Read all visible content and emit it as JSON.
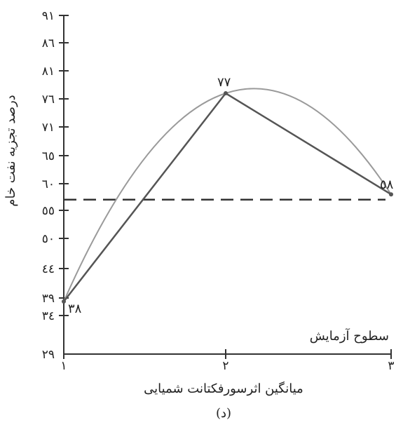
{
  "chart_data": {
    "type": "line",
    "ylabel": "درصد تجزیه نفت خام",
    "xlabel": "میانگین اثرسورفکتانت شمیایی",
    "x_axis_name": "سطوح آزمایش",
    "caption": "(د)",
    "x": [
      1,
      2,
      3
    ],
    "x_tick_labels": [
      "١",
      "٢",
      "٣"
    ],
    "ylim": [
      29,
      91
    ],
    "y_ticks": [
      29,
      34,
      39,
      44,
      50,
      55,
      60,
      65,
      71,
      76,
      81,
      86,
      91
    ],
    "y_tick_labels": [
      "٢٩",
      "٣٤",
      "٣٩",
      "٤٤",
      "٥٠",
      "٥٥",
      "٦٠",
      "٦٥",
      "٧١",
      "٧٦",
      "٨١",
      "٨٦",
      "٩١"
    ],
    "series": [
      {
        "name": "",
        "style": "polyline",
        "color": "#555555",
        "values": [
          38,
          77,
          58
        ],
        "point_labels": [
          "٣٨",
          "٧٧",
          "٥٨"
        ]
      }
    ],
    "fit_curve": {
      "style": "smooth",
      "color": "#9a9a9a"
    },
    "reference_line": {
      "y": 57,
      "style": "dashed",
      "color": "#333333"
    },
    "grid": false
  }
}
